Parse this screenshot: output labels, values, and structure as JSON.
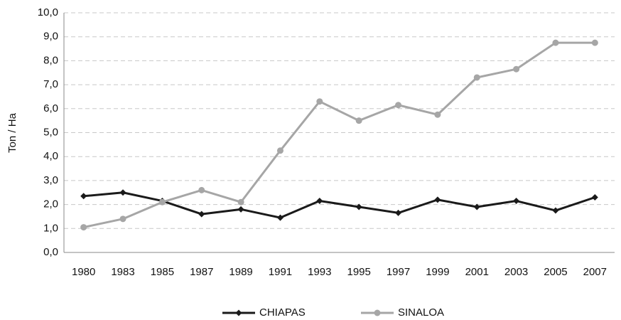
{
  "chart_data": {
    "type": "line",
    "y_label": "Ton / Ha",
    "categories": [
      "1980",
      "1983",
      "1985",
      "1987",
      "1989",
      "1991",
      "1993",
      "1995",
      "1997",
      "1999",
      "2001",
      "2003",
      "2005",
      "2007"
    ],
    "series": [
      {
        "name": "CHIAPAS",
        "color": "#1a1a1a",
        "marker": "diamond",
        "values": [
          2.35,
          2.5,
          2.15,
          1.6,
          1.8,
          1.45,
          2.15,
          1.9,
          1.65,
          2.2,
          1.9,
          2.15,
          1.75,
          2.3
        ]
      },
      {
        "name": "SINALOA",
        "color": "#a6a6a6",
        "marker": "circle",
        "values": [
          1.05,
          1.4,
          2.1,
          2.6,
          2.1,
          4.25,
          6.3,
          5.5,
          6.15,
          5.75,
          7.3,
          7.65,
          8.75,
          8.75
        ]
      }
    ],
    "ylim": [
      0,
      10
    ],
    "yticks": [
      {
        "value": 0,
        "label": "0,0"
      },
      {
        "value": 1,
        "label": "1,0"
      },
      {
        "value": 2,
        "label": "2,0"
      },
      {
        "value": 3,
        "label": "3,0"
      },
      {
        "value": 4,
        "label": "4,0"
      },
      {
        "value": 5,
        "label": "5,0"
      },
      {
        "value": 6,
        "label": "6,0"
      },
      {
        "value": 7,
        "label": "7,0"
      },
      {
        "value": 8,
        "label": "8,0"
      },
      {
        "value": 9,
        "label": "9,0"
      },
      {
        "value": 10,
        "label": "10,0"
      }
    ],
    "grid": true,
    "legend": "bottom"
  }
}
